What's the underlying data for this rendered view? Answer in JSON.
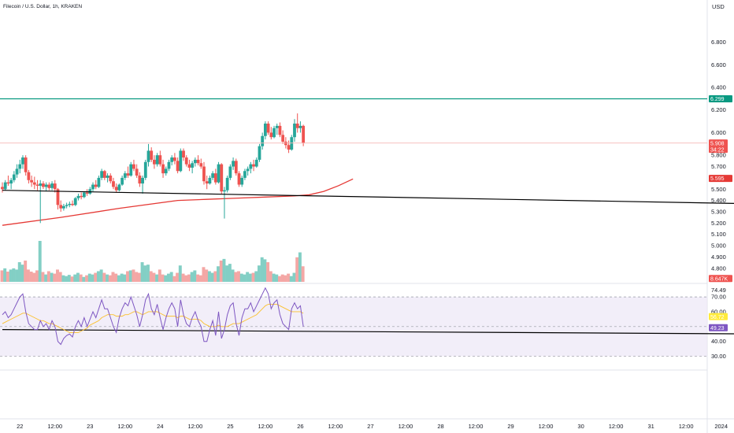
{
  "header": {
    "title": "Filecoin / U.S. Dollar, 1h, KRAKEN",
    "currency": "USD"
  },
  "colors": {
    "up": "#26a69a",
    "down": "#ef5350",
    "up_volume": "#83cfc5",
    "down_volume": "#f4a7a5",
    "ma": "#e53935",
    "resistance": "#089981",
    "trendline": "#000000",
    "rsi_line": "#7e57c2",
    "rsi_ma": "#fbc02d",
    "rsi_band": "#ede7f6",
    "border": "#e0e3eb"
  },
  "chart_data": [
    {
      "type": "candlestick",
      "name": "price",
      "ylim": [
        4.68,
        7.02
      ],
      "y_ticks": [
        "6.800",
        "6.600",
        "6.400",
        "6.200",
        "6.000",
        "5.800",
        "5.700",
        "5.500",
        "5.400",
        "5.300",
        "5.200",
        "5.100",
        "5.000",
        "4.900",
        "4.800",
        "4.710"
      ],
      "x_ticks": [
        "22",
        "12:00",
        "23",
        "12:00",
        "24",
        "12:00",
        "25",
        "12:00",
        "26",
        "12:00",
        "27",
        "12:00",
        "28",
        "12:00",
        "29",
        "12:00",
        "30",
        "12:00",
        "31",
        "12:00",
        "2024",
        "12:00",
        "2",
        "12:00"
      ],
      "x_tick_hours": [
        0,
        12,
        24,
        36,
        48,
        60,
        72,
        84,
        96,
        108,
        120,
        132,
        144,
        156,
        168,
        180,
        192,
        204,
        216,
        228,
        240,
        252,
        264,
        276
      ],
      "start_hour": -6,
      "candles": [
        [
          5.52,
          5.56,
          5.47,
          5.5
        ],
        [
          5.5,
          5.58,
          5.49,
          5.56
        ],
        [
          5.56,
          5.62,
          5.53,
          5.55
        ],
        [
          5.55,
          5.6,
          5.5,
          5.58
        ],
        [
          5.58,
          5.66,
          5.56,
          5.63
        ],
        [
          5.63,
          5.72,
          5.6,
          5.68
        ],
        [
          5.68,
          5.76,
          5.64,
          5.72
        ],
        [
          5.72,
          5.8,
          5.68,
          5.78
        ],
        [
          5.78,
          5.8,
          5.62,
          5.65
        ],
        [
          5.65,
          5.67,
          5.55,
          5.58
        ],
        [
          5.58,
          5.62,
          5.52,
          5.56
        ],
        [
          5.56,
          5.61,
          5.5,
          5.54
        ],
        [
          5.54,
          5.58,
          5.49,
          5.53
        ],
        [
          5.53,
          5.58,
          5.2,
          5.55
        ],
        [
          5.55,
          5.57,
          5.5,
          5.52
        ],
        [
          5.52,
          5.56,
          5.48,
          5.54
        ],
        [
          5.54,
          5.56,
          5.49,
          5.51
        ],
        [
          5.51,
          5.57,
          5.49,
          5.55
        ],
        [
          5.55,
          5.58,
          5.47,
          5.5
        ],
        [
          5.5,
          5.51,
          5.32,
          5.36
        ],
        [
          5.36,
          5.4,
          5.3,
          5.33
        ],
        [
          5.33,
          5.37,
          5.31,
          5.35
        ],
        [
          5.35,
          5.38,
          5.33,
          5.36
        ],
        [
          5.36,
          5.39,
          5.34,
          5.37
        ],
        [
          5.37,
          5.4,
          5.35,
          5.36
        ],
        [
          5.36,
          5.43,
          5.35,
          5.42
        ],
        [
          5.42,
          5.46,
          5.4,
          5.44
        ],
        [
          5.44,
          5.47,
          5.41,
          5.43
        ],
        [
          5.43,
          5.48,
          5.42,
          5.47
        ],
        [
          5.47,
          5.5,
          5.44,
          5.46
        ],
        [
          5.46,
          5.52,
          5.45,
          5.5
        ],
        [
          5.5,
          5.56,
          5.48,
          5.54
        ],
        [
          5.54,
          5.58,
          5.5,
          5.52
        ],
        [
          5.52,
          5.62,
          5.51,
          5.6
        ],
        [
          5.6,
          5.68,
          5.58,
          5.66
        ],
        [
          5.66,
          5.67,
          5.58,
          5.6
        ],
        [
          5.6,
          5.64,
          5.56,
          5.62
        ],
        [
          5.62,
          5.64,
          5.55,
          5.57
        ],
        [
          5.57,
          5.6,
          5.5,
          5.52
        ],
        [
          5.52,
          5.55,
          5.47,
          5.49
        ],
        [
          5.49,
          5.55,
          5.48,
          5.54
        ],
        [
          5.54,
          5.62,
          5.53,
          5.6
        ],
        [
          5.6,
          5.66,
          5.58,
          5.64
        ],
        [
          5.64,
          5.7,
          5.6,
          5.62
        ],
        [
          5.62,
          5.74,
          5.61,
          5.72
        ],
        [
          5.72,
          5.76,
          5.66,
          5.68
        ],
        [
          5.68,
          5.72,
          5.6,
          5.62
        ],
        [
          5.62,
          5.65,
          5.52,
          5.55
        ],
        [
          5.55,
          5.62,
          5.46,
          5.6
        ],
        [
          5.6,
          5.76,
          5.58,
          5.74
        ],
        [
          5.74,
          5.9,
          5.7,
          5.84
        ],
        [
          5.84,
          5.87,
          5.74,
          5.76
        ],
        [
          5.76,
          5.8,
          5.68,
          5.72
        ],
        [
          5.72,
          5.82,
          5.7,
          5.8
        ],
        [
          5.8,
          5.84,
          5.7,
          5.72
        ],
        [
          5.72,
          5.76,
          5.6,
          5.64
        ],
        [
          5.64,
          5.7,
          5.62,
          5.68
        ],
        [
          5.68,
          5.76,
          5.66,
          5.74
        ],
        [
          5.74,
          5.8,
          5.71,
          5.78
        ],
        [
          5.78,
          5.82,
          5.72,
          5.75
        ],
        [
          5.75,
          5.78,
          5.64,
          5.66
        ],
        [
          5.66,
          5.86,
          5.65,
          5.84
        ],
        [
          5.84,
          5.86,
          5.75,
          5.78
        ],
        [
          5.78,
          5.8,
          5.7,
          5.72
        ],
        [
          5.72,
          5.76,
          5.66,
          5.69
        ],
        [
          5.69,
          5.75,
          5.64,
          5.73
        ],
        [
          5.73,
          5.78,
          5.7,
          5.76
        ],
        [
          5.76,
          5.8,
          5.71,
          5.73
        ],
        [
          5.73,
          5.77,
          5.68,
          5.7
        ],
        [
          5.7,
          5.74,
          5.54,
          5.57
        ],
        [
          5.57,
          5.62,
          5.5,
          5.55
        ],
        [
          5.55,
          5.62,
          5.54,
          5.6
        ],
        [
          5.6,
          5.66,
          5.58,
          5.64
        ],
        [
          5.64,
          5.68,
          5.54,
          5.56
        ],
        [
          5.56,
          5.74,
          5.55,
          5.72
        ],
        [
          5.72,
          5.73,
          5.46,
          5.48
        ],
        [
          5.48,
          5.52,
          5.24,
          5.49
        ],
        [
          5.49,
          5.62,
          5.47,
          5.6
        ],
        [
          5.6,
          5.72,
          5.58,
          5.7
        ],
        [
          5.7,
          5.78,
          5.67,
          5.75
        ],
        [
          5.75,
          5.77,
          5.62,
          5.64
        ],
        [
          5.64,
          5.66,
          5.52,
          5.54
        ],
        [
          5.54,
          5.62,
          5.52,
          5.6
        ],
        [
          5.6,
          5.68,
          5.58,
          5.66
        ],
        [
          5.66,
          5.7,
          5.62,
          5.68
        ],
        [
          5.68,
          5.74,
          5.64,
          5.72
        ],
        [
          5.72,
          5.76,
          5.66,
          5.7
        ],
        [
          5.7,
          5.78,
          5.69,
          5.76
        ],
        [
          5.76,
          5.9,
          5.74,
          5.88
        ],
        [
          5.88,
          6.0,
          5.85,
          5.97
        ],
        [
          5.97,
          6.1,
          5.94,
          6.08
        ],
        [
          6.08,
          6.1,
          5.98,
          6.0
        ],
        [
          6.0,
          6.05,
          5.94,
          5.96
        ],
        [
          5.96,
          6.06,
          5.95,
          6.04
        ],
        [
          6.04,
          6.08,
          5.98,
          6.06
        ],
        [
          6.06,
          6.09,
          5.96,
          5.98
        ],
        [
          5.98,
          6.02,
          5.9,
          5.92
        ],
        [
          5.92,
          5.96,
          5.86,
          5.89
        ],
        [
          5.89,
          5.93,
          5.82,
          5.85
        ],
        [
          5.85,
          5.98,
          5.84,
          5.96
        ],
        [
          5.96,
          6.12,
          5.92,
          6.08
        ],
        [
          6.08,
          6.17,
          6.0,
          6.04
        ],
        [
          6.04,
          6.1,
          6.0,
          6.06
        ],
        [
          6.06,
          6.07,
          5.88,
          5.91
        ]
      ],
      "moving_average": {
        "start_value": 5.18,
        "points": [
          [
            0,
            5.18
          ],
          [
            20,
            5.25
          ],
          [
            40,
            5.33
          ],
          [
            60,
            5.4
          ],
          [
            70,
            5.41
          ],
          [
            80,
            5.42
          ],
          [
            90,
            5.43
          ],
          [
            100,
            5.44
          ],
          [
            105,
            5.45
          ],
          [
            110,
            5.48
          ],
          [
            115,
            5.53
          ],
          [
            120,
            5.59
          ]
        ]
      },
      "horizontal_levels": [
        {
          "label": "6.299",
          "value": 6.299
        },
        {
          "label": "5.908",
          "value": 5.908,
          "countdown": "34:22"
        }
      ],
      "price_tags": [
        {
          "label": "5.595",
          "value": 5.595
        },
        {
          "label": "8.647K",
          "value": 4.71
        }
      ],
      "trendline": {
        "start": [
          0,
          5.49
        ],
        "end": [
          280,
          5.36
        ]
      },
      "volume_scale_max": 1.0,
      "volumes": [
        0.28,
        0.33,
        0.25,
        0.3,
        0.33,
        0.3,
        0.48,
        0.42,
        0.52,
        0.3,
        0.25,
        0.22,
        0.28,
        1.0,
        0.24,
        0.18,
        0.26,
        0.22,
        0.2,
        0.3,
        0.24,
        0.16,
        0.14,
        0.17,
        0.13,
        0.18,
        0.22,
        0.18,
        0.12,
        0.16,
        0.2,
        0.18,
        0.22,
        0.26,
        0.3,
        0.22,
        0.18,
        0.16,
        0.24,
        0.2,
        0.16,
        0.2,
        0.18,
        0.26,
        0.28,
        0.3,
        0.24,
        0.22,
        0.48,
        0.4,
        0.42,
        0.26,
        0.22,
        0.18,
        0.3,
        0.18,
        0.16,
        0.2,
        0.24,
        0.14,
        0.22,
        0.4,
        0.2,
        0.16,
        0.18,
        0.24,
        0.28,
        0.18,
        0.16,
        0.36,
        0.3,
        0.26,
        0.22,
        0.26,
        0.38,
        0.52,
        0.56,
        0.4,
        0.44,
        0.3,
        0.24,
        0.26,
        0.2,
        0.18,
        0.24,
        0.2,
        0.22,
        0.26,
        0.4,
        0.6,
        0.55,
        0.48,
        0.26,
        0.2,
        0.18,
        0.14,
        0.18,
        0.16,
        0.2,
        0.14,
        0.22,
        0.6,
        0.72,
        0.38
      ]
    },
    {
      "type": "line",
      "name": "RSI",
      "ylim": [
        25,
        78
      ],
      "y_ticks": [
        "74.49",
        "70.00",
        "60.00",
        "48.48",
        "40.00",
        "30.00"
      ],
      "band": {
        "upper": 70,
        "lower": 30,
        "middle": 50
      },
      "value_tags": [
        {
          "label": "56.72",
          "value": 56.72
        },
        {
          "label": "49.23",
          "value": 49.23
        }
      ],
      "trendline": {
        "start": [
          0,
          48.0
        ],
        "end": [
          280,
          44.8
        ]
      },
      "rsi": [
        58,
        60,
        56,
        58,
        62,
        66,
        70,
        72,
        60,
        52,
        50,
        48,
        48,
        54,
        50,
        52,
        48,
        54,
        50,
        40,
        38,
        42,
        44,
        45,
        43,
        50,
        54,
        50,
        56,
        50,
        55,
        60,
        56,
        62,
        68,
        62,
        62,
        56,
        50,
        46,
        56,
        62,
        66,
        64,
        70,
        64,
        58,
        50,
        58,
        68,
        72,
        62,
        58,
        65,
        56,
        48,
        56,
        62,
        66,
        62,
        50,
        68,
        58,
        52,
        50,
        56,
        60,
        54,
        50,
        40,
        40,
        48,
        54,
        44,
        60,
        42,
        48,
        58,
        64,
        66,
        52,
        44,
        56,
        62,
        62,
        66,
        60,
        64,
        68,
        72,
        76,
        72,
        62,
        66,
        68,
        58,
        52,
        50,
        48,
        62,
        66,
        62,
        64,
        50
      ],
      "rsi_ma": [
        52,
        53,
        54,
        55,
        56,
        57,
        58,
        59,
        59,
        58,
        57,
        56,
        55,
        54,
        54,
        53,
        52,
        52,
        51,
        50,
        49,
        48,
        47,
        46,
        46,
        46,
        46,
        47,
        48,
        49,
        51,
        52,
        53,
        54,
        56,
        57,
        58,
        58,
        58,
        57,
        57,
        57,
        58,
        58,
        59,
        60,
        60,
        59,
        58,
        59,
        60,
        60,
        60,
        60,
        59,
        58,
        57,
        57,
        57,
        57,
        56,
        57,
        57,
        56,
        55,
        55,
        55,
        55,
        54,
        52,
        51,
        50,
        50,
        50,
        51,
        50,
        50,
        50,
        51,
        52,
        52,
        52,
        53,
        54,
        55,
        56,
        57,
        58,
        60,
        62,
        64,
        65,
        65,
        65,
        65,
        64,
        63,
        62,
        61,
        60,
        60,
        60,
        60,
        59
      ]
    }
  ]
}
